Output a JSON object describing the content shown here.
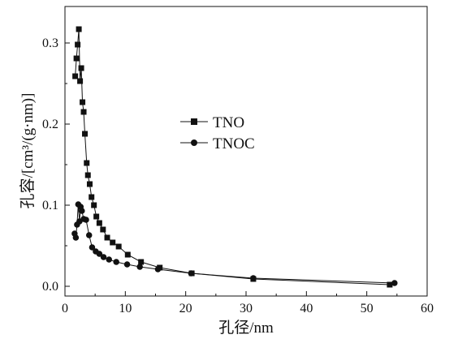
{
  "chart_data": {
    "type": "line",
    "xlabel": "孔径/nm",
    "ylabel": "孔容/[cm³/(g·nm)]",
    "xlim": [
      0,
      60
    ],
    "ylim": [
      -0.012,
      0.345
    ],
    "xticks": [
      "0",
      "10",
      "20",
      "30",
      "40",
      "50",
      "60"
    ],
    "xtick_values": [
      0,
      10,
      20,
      30,
      40,
      50,
      60
    ],
    "yticks": [
      "0.0",
      "0.1",
      "0.2",
      "0.3"
    ],
    "ytick_values": [
      0.0,
      0.1,
      0.2,
      0.3
    ],
    "grid": false,
    "legend_position": "right-middle",
    "series": [
      {
        "name": "TNO",
        "marker": "square",
        "color": "#111111",
        "points": [
          [
            1.7,
            0.259
          ],
          [
            1.9,
            0.281
          ],
          [
            2.1,
            0.298
          ],
          [
            2.3,
            0.317
          ],
          [
            2.5,
            0.253
          ],
          [
            2.7,
            0.269
          ],
          [
            2.9,
            0.227
          ],
          [
            3.1,
            0.215
          ],
          [
            3.3,
            0.188
          ],
          [
            3.6,
            0.152
          ],
          [
            3.8,
            0.137
          ],
          [
            4.1,
            0.126
          ],
          [
            4.4,
            0.11
          ],
          [
            4.8,
            0.1
          ],
          [
            5.2,
            0.086
          ],
          [
            5.7,
            0.078
          ],
          [
            6.3,
            0.07
          ],
          [
            7.0,
            0.06
          ],
          [
            7.9,
            0.054
          ],
          [
            8.9,
            0.049
          ],
          [
            10.4,
            0.039
          ],
          [
            12.6,
            0.03
          ],
          [
            15.7,
            0.023
          ],
          [
            21.0,
            0.016
          ],
          [
            31.2,
            0.009
          ],
          [
            53.8,
            0.002
          ]
        ]
      },
      {
        "name": "TNOC",
        "marker": "circle",
        "color": "#111111",
        "points": [
          [
            1.6,
            0.065
          ],
          [
            1.8,
            0.06
          ],
          [
            2.0,
            0.076
          ],
          [
            2.2,
            0.101
          ],
          [
            2.4,
            0.08
          ],
          [
            2.6,
            0.098
          ],
          [
            2.8,
            0.093
          ],
          [
            3.1,
            0.083
          ],
          [
            3.5,
            0.082
          ],
          [
            4.0,
            0.063
          ],
          [
            4.5,
            0.048
          ],
          [
            5.1,
            0.043
          ],
          [
            5.7,
            0.04
          ],
          [
            6.4,
            0.036
          ],
          [
            7.3,
            0.033
          ],
          [
            8.5,
            0.03
          ],
          [
            10.3,
            0.027
          ],
          [
            12.4,
            0.024
          ],
          [
            15.4,
            0.021
          ],
          [
            20.9,
            0.016
          ],
          [
            31.2,
            0.01
          ],
          [
            54.6,
            0.004
          ]
        ]
      }
    ]
  }
}
